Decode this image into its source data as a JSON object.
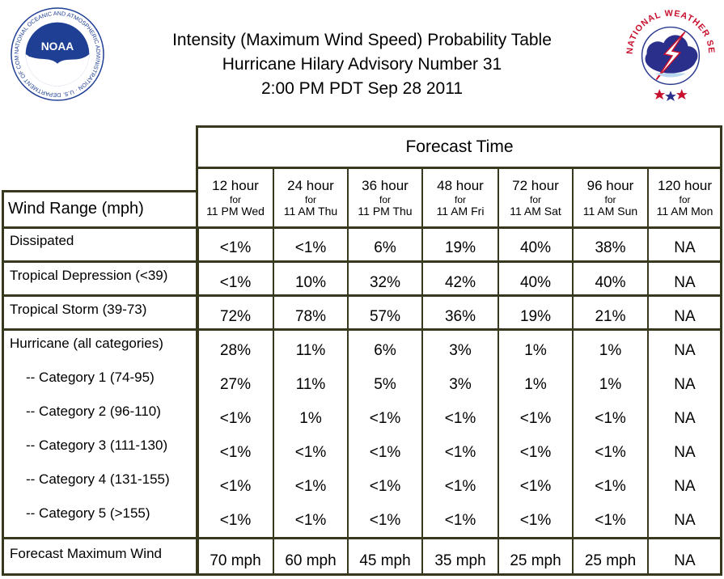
{
  "title": {
    "line1": "Intensity (Maximum Wind Speed) Probability Table",
    "line2": "Hurricane Hilary Advisory Number 31",
    "line3": "2:00 PM PDT Sep 28 2011"
  },
  "logos": {
    "noaa": {
      "center_text": "NOAA",
      "ring_text": "NATIONAL OCEANIC AND ATMOSPHERIC ADMINISTRATION · U.S. DEPARTMENT OF COMMERCE",
      "color": "#1f3f95"
    },
    "nws": {
      "ring_text": "NATIONAL WEATHER SERVICE",
      "color": "#c8102e"
    }
  },
  "table": {
    "forecast_time_label": "Forecast Time",
    "wind_range_label": "Wind Range (mph)",
    "columns": [
      {
        "hour": "12 hour",
        "for": "for",
        "when": "11 PM Wed"
      },
      {
        "hour": "24 hour",
        "for": "for",
        "when": "11 AM Thu"
      },
      {
        "hour": "36 hour",
        "for": "for",
        "when": "11 PM Thu"
      },
      {
        "hour": "48 hour",
        "for": "for",
        "when": "11 AM Fri"
      },
      {
        "hour": "72 hour",
        "for": "for",
        "when": "11 AM Sat"
      },
      {
        "hour": "96 hour",
        "for": "for",
        "when": "11 AM Sun"
      },
      {
        "hour": "120 hour",
        "for": "for",
        "when": "11 AM Mon"
      }
    ],
    "rows": [
      {
        "label": "Dissipated",
        "values": [
          "<1%",
          "<1%",
          "6%",
          "19%",
          "40%",
          "38%",
          "NA"
        ]
      },
      {
        "label": "Tropical Depression (<39)",
        "values": [
          "<1%",
          "10%",
          "32%",
          "42%",
          "40%",
          "40%",
          "NA"
        ]
      },
      {
        "label": "Tropical Storm (39-73)",
        "values": [
          "72%",
          "78%",
          "57%",
          "36%",
          "19%",
          "21%",
          "NA"
        ]
      },
      {
        "label": "Hurricane (all categories)",
        "values": [
          "28%",
          "11%",
          "6%",
          "3%",
          "1%",
          "1%",
          "NA"
        ]
      },
      {
        "label": "-- Category 1 (74-95)",
        "values": [
          "27%",
          "11%",
          "5%",
          "3%",
          "1%",
          "1%",
          "NA"
        ]
      },
      {
        "label": "-- Category 2 (96-110)",
        "values": [
          "<1%",
          "1%",
          "<1%",
          "<1%",
          "<1%",
          "<1%",
          "NA"
        ]
      },
      {
        "label": "-- Category 3 (111-130)",
        "values": [
          "<1%",
          "<1%",
          "<1%",
          "<1%",
          "<1%",
          "<1%",
          "NA"
        ]
      },
      {
        "label": "-- Category 4 (131-155)",
        "values": [
          "<1%",
          "<1%",
          "<1%",
          "<1%",
          "<1%",
          "<1%",
          "NA"
        ]
      },
      {
        "label": "-- Category 5 (>155)",
        "values": [
          "<1%",
          "<1%",
          "<1%",
          "<1%",
          "<1%",
          "<1%",
          "NA"
        ]
      },
      {
        "label": "Forecast Maximum Wind",
        "values": [
          "70 mph",
          "60 mph",
          "45 mph",
          "35 mph",
          "25 mph",
          "25 mph",
          "NA"
        ]
      }
    ],
    "border_color": "#38381f"
  }
}
